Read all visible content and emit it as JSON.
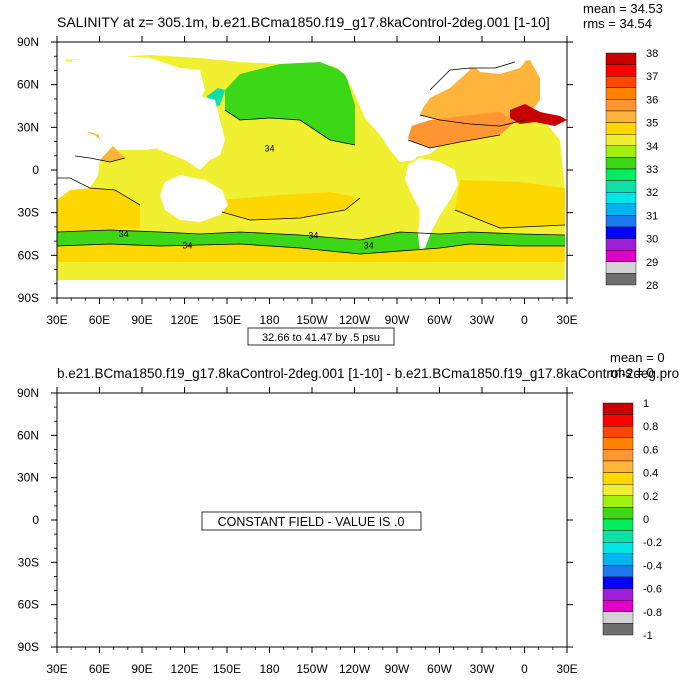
{
  "colors": {
    "levels": [
      "#6e6e6e",
      "#d2d2d2",
      "#e100c8",
      "#9f1fd8",
      "#0000ff",
      "#1e78f0",
      "#00b4f0",
      "#00e6e6",
      "#10e0a8",
      "#00ee60",
      "#3cd818",
      "#a0f010",
      "#f0f030",
      "#ffd700",
      "#ffb43c",
      "#ff9632",
      "#ff8200",
      "#ff4600",
      "#ff0000",
      "#c80000"
    ],
    "land": "#ffffff",
    "contour": "#000000"
  },
  "chart_data": [
    {
      "type": "heatmap",
      "title": "SALINITY at z= 305.1m, b.e21.BCma1850.f19_g17.8kaControl-2deg.001 [1-10]",
      "stats": {
        "mean": "mean = 34.53",
        "rms": "rms = 34.54"
      },
      "contour_info": "32.66 to 41.47 by .5 psu",
      "x_ticks": [
        "30E",
        "60E",
        "90E",
        "120E",
        "150E",
        "180",
        "150W",
        "120W",
        "90W",
        "60W",
        "30W",
        "0",
        "30E"
      ],
      "y_ticks": [
        "90N",
        "60N",
        "30N",
        "0",
        "30S",
        "60S",
        "90S"
      ],
      "xlim": [
        30,
        390
      ],
      "ylim": [
        -90,
        90
      ],
      "colorbar_labels": [
        "38",
        "37",
        "36",
        "35",
        "34",
        "33",
        "32",
        "31",
        "30",
        "29",
        "28"
      ],
      "contour_labels": [
        {
          "text": "34",
          "lon": 180,
          "lat": 15
        },
        {
          "text": "34",
          "lon": 77,
          "lat": -45
        },
        {
          "text": "34",
          "lon": 122,
          "lat": -53
        },
        {
          "text": "34",
          "lon": 211,
          "lat": -46
        },
        {
          "text": "34",
          "lon": 250,
          "lat": -53
        }
      ]
    },
    {
      "type": "heatmap",
      "title": "b.e21.BCma1850.f19_g17.8kaControl-2deg.001 [1-10] - b.e21.BCma1850.f19_g17.8kaControl-2deg.pro",
      "stats": {
        "mean": "mean = 0",
        "rms": "rms = 0"
      },
      "constant_message": "CONSTANT FIELD - VALUE IS .0",
      "x_ticks": [
        "30E",
        "60E",
        "90E",
        "120E",
        "150E",
        "180",
        "150W",
        "120W",
        "90W",
        "60W",
        "30W",
        "0",
        "30E"
      ],
      "y_ticks": [
        "90N",
        "60N",
        "30N",
        "0",
        "30S",
        "60S",
        "90S"
      ],
      "xlim": [
        30,
        390
      ],
      "ylim": [
        -90,
        90
      ],
      "colorbar_labels": [
        "1",
        "0.8",
        "0.6",
        "0.4",
        "0.2",
        "0",
        "-0.2",
        "-0.4",
        "-0.6",
        "-0.8",
        "-1"
      ]
    }
  ]
}
